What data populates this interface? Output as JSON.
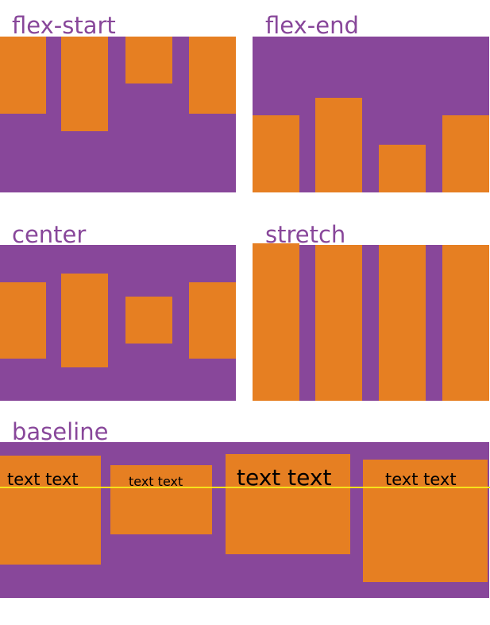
{
  "colors": {
    "container": "#88479a",
    "item": "#e67f22",
    "baseline_line": "#f7e21a"
  },
  "examples": [
    {
      "label": "flex-start"
    },
    {
      "label": "flex-end"
    },
    {
      "label": "center"
    },
    {
      "label": "stretch"
    },
    {
      "label": "baseline",
      "item_text": [
        "text text",
        "text text",
        "text text",
        "text text"
      ]
    }
  ]
}
